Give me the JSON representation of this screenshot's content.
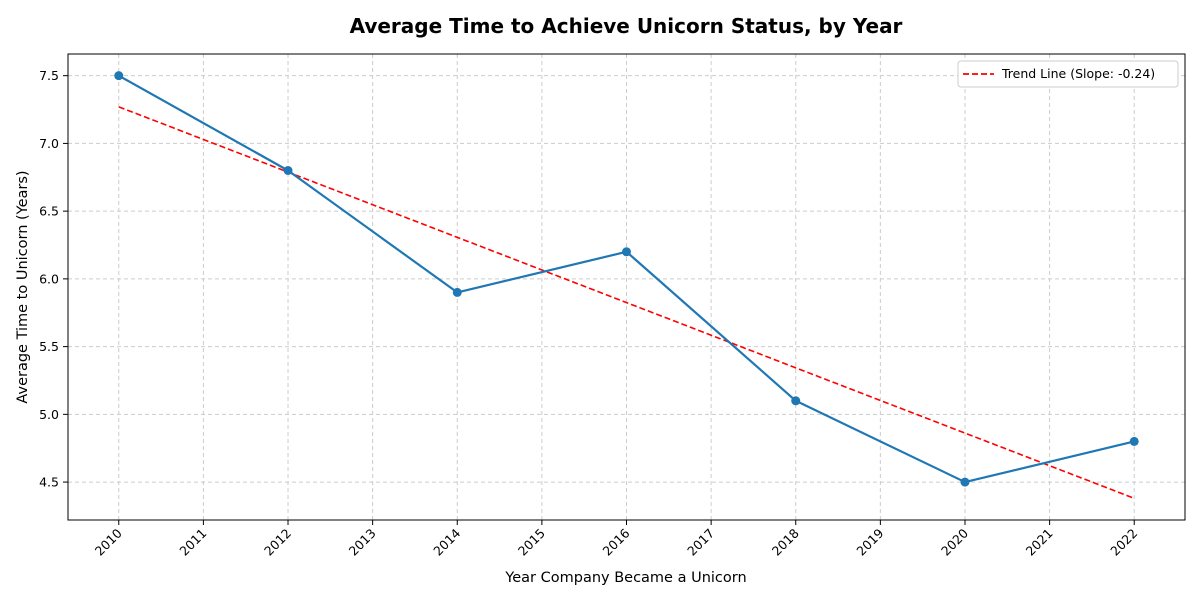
{
  "chart_data": {
    "type": "line",
    "title": "Average Time to Achieve Unicorn Status, by Year",
    "xlabel": "Year Company Became a Unicorn",
    "ylabel": "Average Time to Unicorn (Years)",
    "xticks": [
      "2010",
      "2011",
      "2012",
      "2013",
      "2014",
      "2015",
      "2016",
      "2017",
      "2018",
      "2019",
      "2020",
      "2021",
      "2022"
    ],
    "yticks": [
      "4.5",
      "5.0",
      "5.5",
      "6.0",
      "6.5",
      "7.0",
      "7.5"
    ],
    "xlim": [
      2009.4,
      2022.6
    ],
    "ylim": [
      4.22,
      7.66
    ],
    "grid": true,
    "legend_position": "top-right",
    "series": [
      {
        "x": [
          2010,
          2012,
          2014,
          2016,
          2018,
          2020,
          2022
        ],
        "y": [
          7.5,
          6.8,
          5.9,
          6.2,
          5.1,
          4.5,
          4.8
        ],
        "color": "#1f77b4",
        "markers": true,
        "style": "solid"
      }
    ],
    "trend_line": {
      "name": "Trend Line (Slope: -0.24)",
      "x": [
        2010,
        2022
      ],
      "y": [
        7.27,
        4.38
      ],
      "color": "#ff0000",
      "style": "dashed"
    }
  }
}
